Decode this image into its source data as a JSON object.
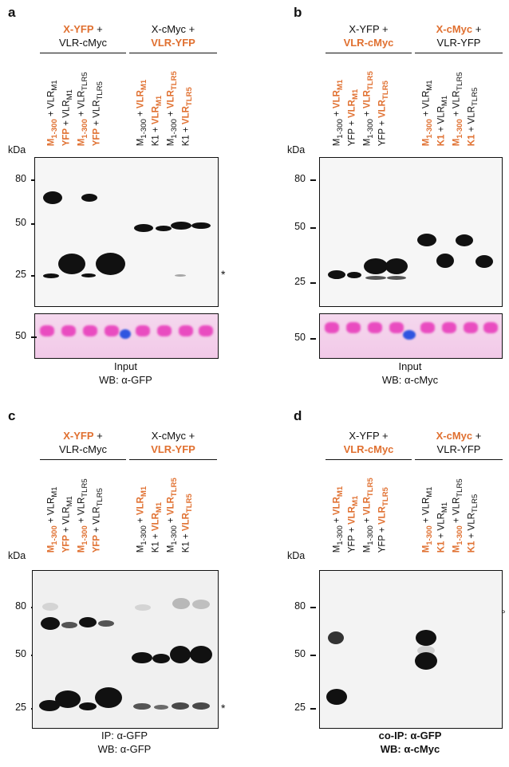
{
  "panels": {
    "a": {
      "letter": "a",
      "group_left": {
        "line1_hl": "X-YFP",
        "line1_rest": " +",
        "line2": "VLR-cMyc"
      },
      "group_right": {
        "line1": "X-cMyc +",
        "line2_hl": "VLR-YFP"
      },
      "kda": "kDa",
      "ticks": [
        "80",
        "50",
        "25"
      ],
      "ponceau_tick": "50",
      "marker": "*",
      "caption1": "Input",
      "caption2": "WB: α-GFP"
    },
    "b": {
      "letter": "b",
      "group_left": {
        "line1": "X-YFP +",
        "line2_hl": "VLR-cMyc"
      },
      "group_right": {
        "line1_hl": "X-cMyc",
        "line1_rest": " +",
        "line2": "VLR-YFP"
      },
      "kda": "kDa",
      "ticks": [
        "80",
        "50",
        "25"
      ],
      "ponceau_tick": "50",
      "caption1": "Input",
      "caption2": "WB: α-cMyc"
    },
    "c": {
      "letter": "c",
      "group_left": {
        "line1_hl": "X-YFP",
        "line1_rest": " +",
        "line2": "VLR-cMyc"
      },
      "group_right": {
        "line1": "X-cMyc +",
        "line2_hl": "VLR-YFP"
      },
      "kda": "kDa",
      "ticks": [
        "80",
        "50",
        "25"
      ],
      "marker": "*",
      "caption1": "IP: α-GFP",
      "caption2": "WB: α-GFP"
    },
    "d": {
      "letter": "d",
      "group_left": {
        "line1": "X-YFP +",
        "line2_hl": "VLR-cMyc"
      },
      "group_right": {
        "line1_hl": "X-cMyc",
        "line1_rest": " +",
        "line2": "VLR-YFP"
      },
      "kda": "kDa",
      "ticks": [
        "80",
        "50",
        "25"
      ],
      "marker": "°",
      "caption1": "co-IP: α-GFP",
      "caption2": "WB: α-cMyc"
    }
  },
  "lanes": {
    "yfp_x": [
      {
        "a": "M",
        "asub": "1-300",
        "b": " + VLR",
        "bsub": "M1",
        "hl": "a"
      },
      {
        "a": "YFP",
        "asub": "",
        "b": " + VLR",
        "bsub": "M1",
        "hl": "a"
      },
      {
        "a": "M",
        "asub": "1-300",
        "b": " + VLR",
        "bsub": "TLR5",
        "hl": "a"
      },
      {
        "a": "YFP",
        "asub": "",
        "b": " + VLR",
        "bsub": "TLR5",
        "hl": "a"
      }
    ],
    "myc_x": [
      {
        "a": "M",
        "asub": "1-300",
        "b": " + VLR",
        "bsub": "M1",
        "hl": "b"
      },
      {
        "a": "K1",
        "asub": "",
        "b": " + VLR",
        "bsub": "M1",
        "hl": "b"
      },
      {
        "a": "M",
        "asub": "1-300",
        "b": " + VLR",
        "bsub": "TLR5",
        "hl": "b"
      },
      {
        "a": "K1",
        "asub": "",
        "b": " + VLR",
        "bsub": "TLR5",
        "hl": "b"
      }
    ]
  }
}
